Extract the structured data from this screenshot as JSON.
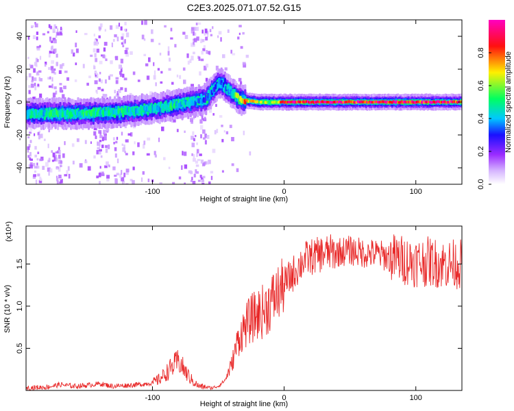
{
  "title": "C2E3.2025.071.07.52.G15",
  "chart_data": [
    {
      "type": "heatmap",
      "title": "C2E3.2025.071.07.52.G15",
      "xlabel": "Height of straight line (km)",
      "ylabel": "Frequency (Hz)",
      "xlim": [
        -196,
        135
      ],
      "ylim": [
        -50,
        50
      ],
      "xticks": [
        -100,
        0,
        100
      ],
      "yticks": [
        -40,
        -20,
        0,
        20,
        40
      ],
      "colorbar": {
        "label": "Normalized spectral amplitude",
        "range": [
          0,
          1
        ],
        "ticks": [
          "0.0",
          "0.2",
          "0.4",
          "0.6",
          "0.8"
        ],
        "colors": [
          "#ffffff",
          "#9b2cff",
          "#1a10ff",
          "#00c8ff",
          "#00ff60",
          "#fff000",
          "#ff1010",
          "#ff00c0"
        ]
      },
      "ridge": {
        "x": [
          -196,
          -175,
          -150,
          -125,
          -100,
          -85,
          -70,
          -60,
          -55,
          -50,
          -45,
          -40,
          -35,
          -30,
          -20,
          -10,
          0,
          20,
          50,
          80,
          100,
          120,
          135
        ],
        "frequency": [
          -7,
          -7,
          -7,
          -6,
          -4,
          -2,
          0,
          2,
          7,
          12,
          9,
          5,
          2,
          1,
          0,
          0,
          0,
          0,
          0,
          0,
          0,
          0,
          0
        ],
        "amplitude": [
          0.45,
          0.5,
          0.5,
          0.5,
          0.45,
          0.5,
          0.45,
          0.35,
          0.35,
          0.4,
          0.4,
          0.45,
          0.7,
          0.8,
          0.65,
          0.6,
          0.9,
          0.95,
          0.95,
          0.95,
          0.95,
          0.95,
          0.95
        ]
      }
    },
    {
      "type": "line",
      "xlabel": "Height of straight line (km)",
      "ylabel": "SNR (10 * v/v)",
      "y_multiplier": "(x10⁴)",
      "xlim": [
        -196,
        135
      ],
      "ylim": [
        0,
        1.95
      ],
      "xticks": [
        -100,
        0,
        100
      ],
      "yticks": [
        "0.5",
        "1.0",
        "1.5"
      ],
      "color": "#e82828",
      "series": [
        {
          "x": [
            -196,
            -180,
            -170,
            -160,
            -150,
            -140,
            -130,
            -120,
            -110,
            -100,
            -95,
            -90,
            -85,
            -80,
            -75,
            -70,
            -65,
            -60,
            -55,
            -50,
            -45,
            -40,
            -35,
            -30,
            -25,
            -20,
            -15,
            -10,
            -5,
            0,
            5,
            10,
            15,
            20,
            25,
            30,
            40,
            50,
            60,
            70,
            80,
            90,
            100,
            110,
            120,
            135
          ],
          "y": [
            0.03,
            0.04,
            0.07,
            0.05,
            0.06,
            0.08,
            0.05,
            0.06,
            0.07,
            0.09,
            0.13,
            0.2,
            0.28,
            0.35,
            0.22,
            0.12,
            0.05,
            0.04,
            0.03,
            0.05,
            0.12,
            0.3,
            0.6,
            0.75,
            0.85,
            0.9,
            0.95,
            1.05,
            1.15,
            1.25,
            1.35,
            1.45,
            1.55,
            1.58,
            1.6,
            1.63,
            1.64,
            1.66,
            1.63,
            1.62,
            1.58,
            1.55,
            1.52,
            1.53,
            1.5,
            1.5
          ]
        }
      ]
    }
  ]
}
